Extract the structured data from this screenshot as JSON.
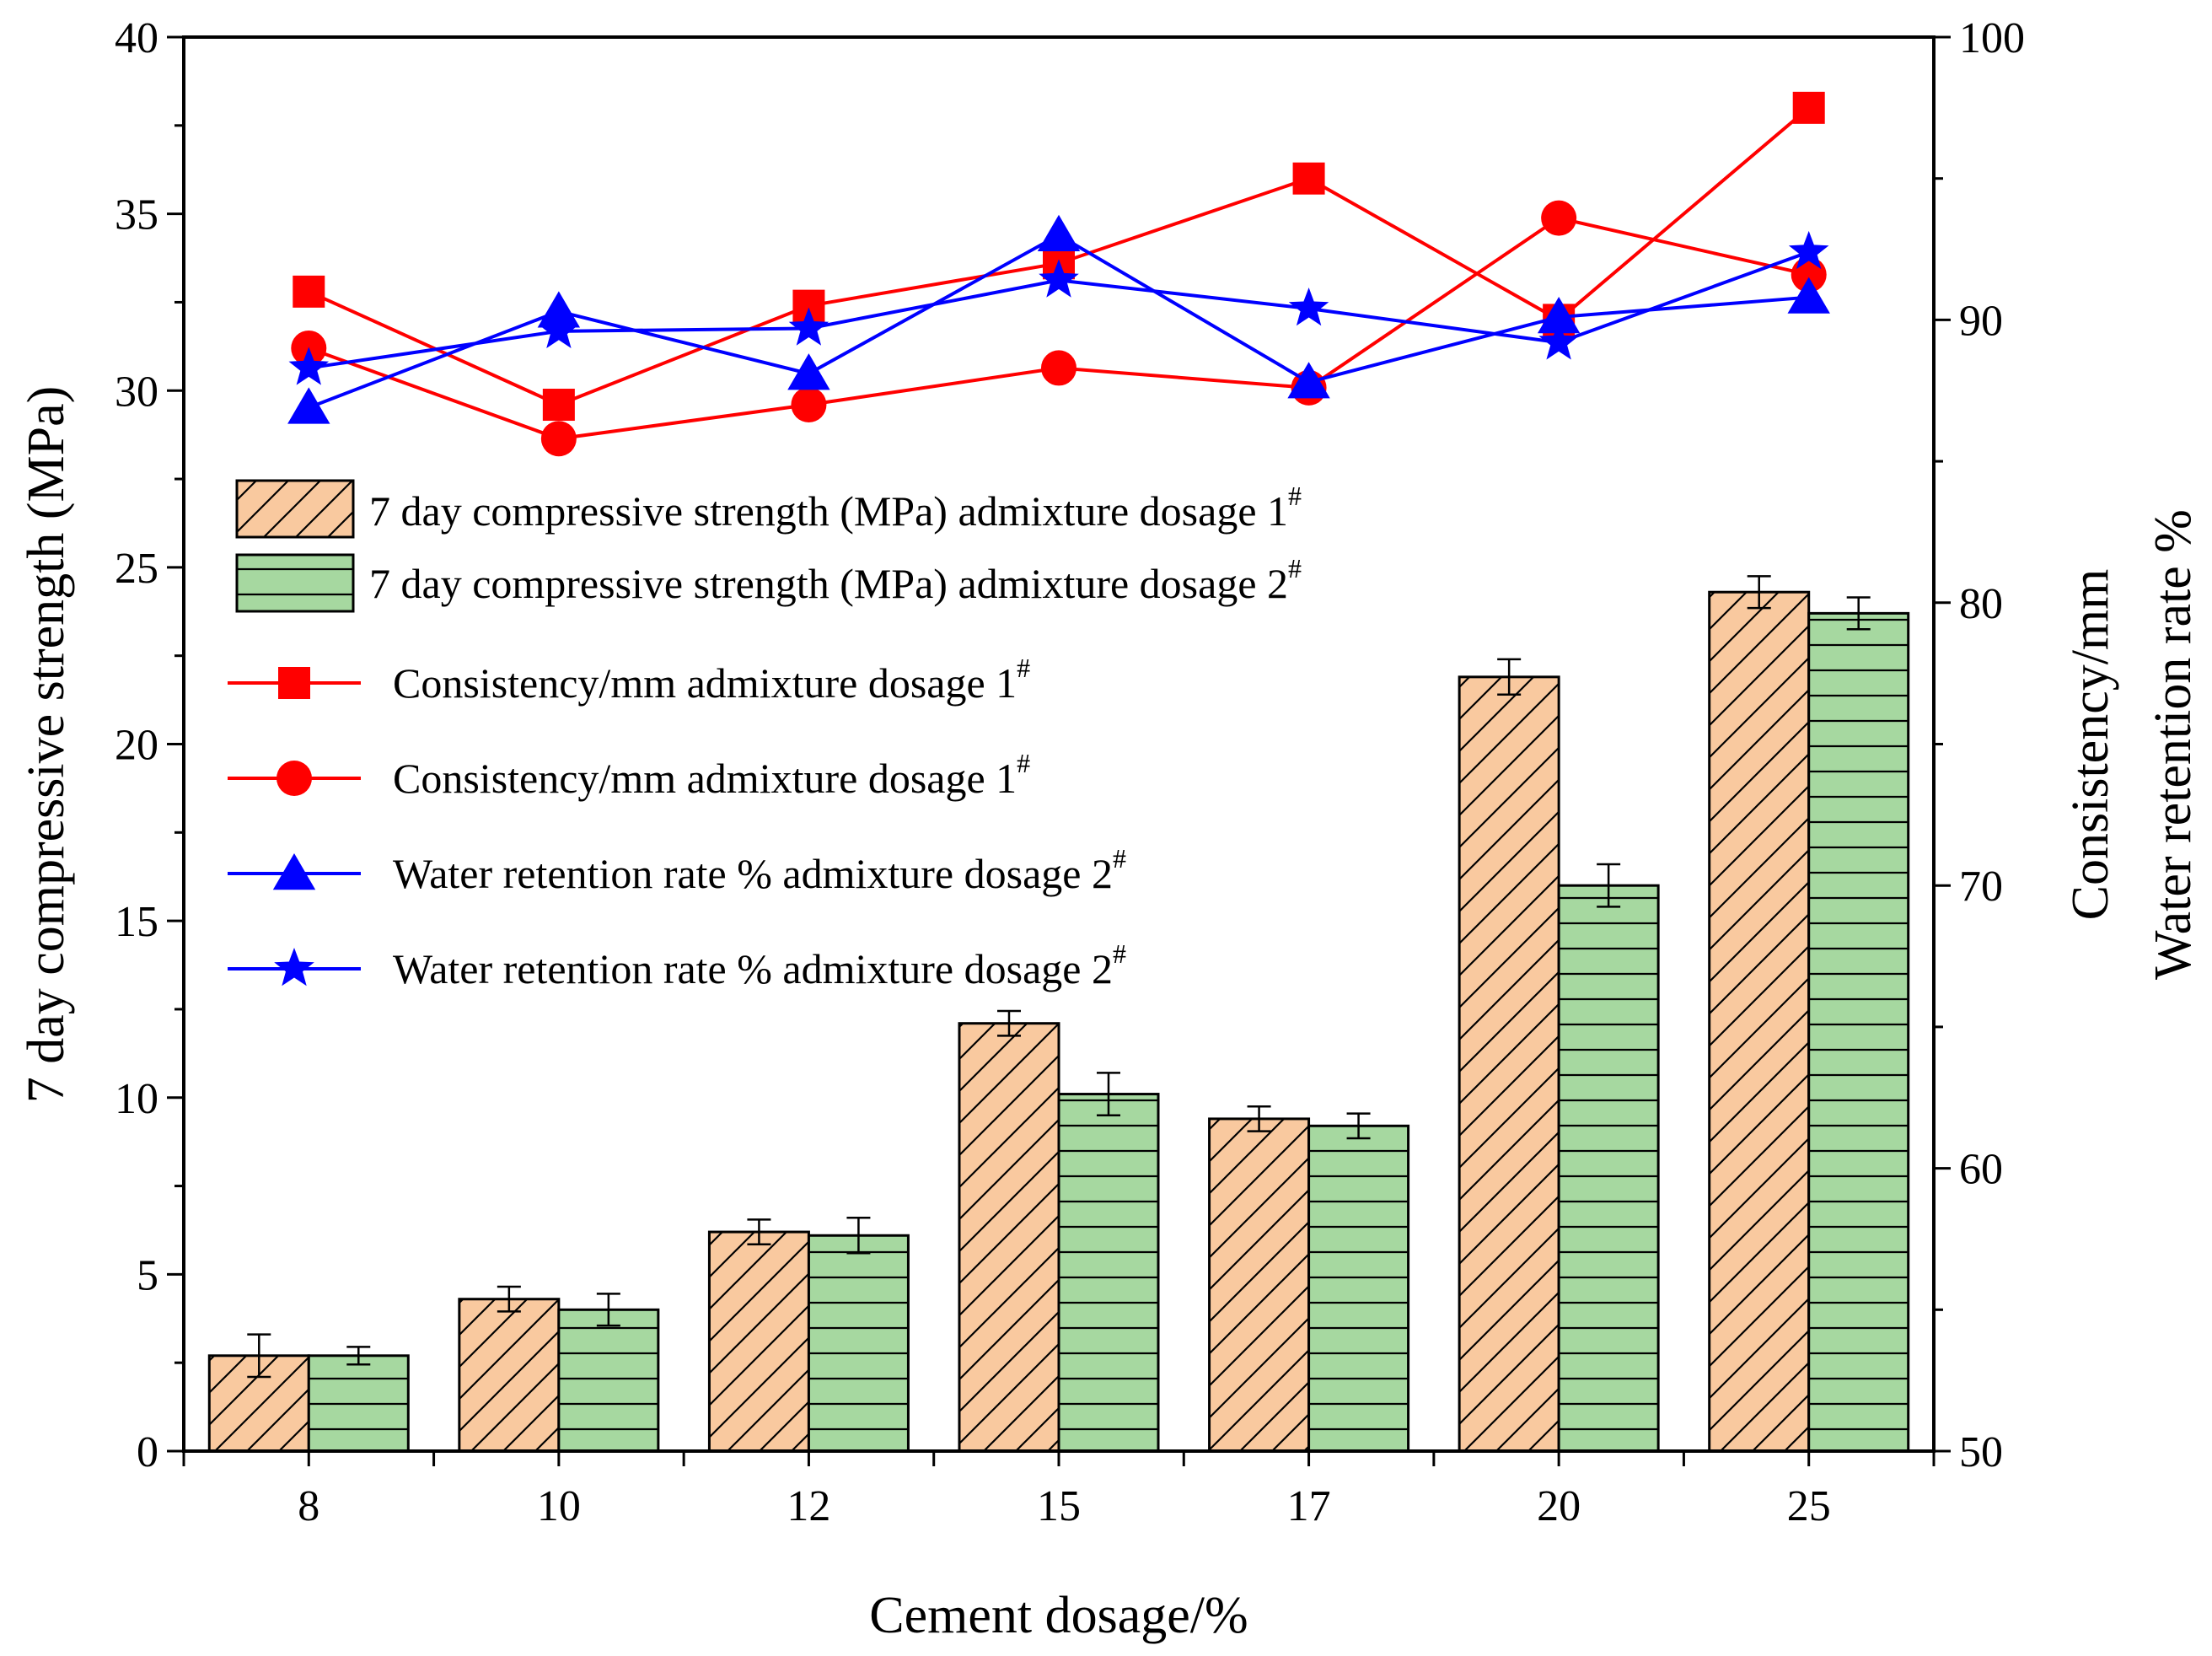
{
  "chart_data": {
    "type": "bar+line",
    "xlabel": "Cement dosage/%",
    "ylabel_left": "7 day compressive strength (MPa)",
    "ylabel_right_1": "Consistency/mm",
    "ylabel_right_2": "Water retention rate %",
    "categories": [
      "8",
      "10",
      "12",
      "15",
      "17",
      "20",
      "25"
    ],
    "y_left": {
      "lim": [
        0,
        40
      ],
      "ticks": [
        "0",
        "5",
        "10",
        "15",
        "20",
        "25",
        "30",
        "35",
        "40"
      ]
    },
    "y_right": {
      "lim": [
        50,
        100
      ],
      "ticks": [
        "50",
        "60",
        "70",
        "80",
        "90",
        "100"
      ]
    },
    "bar_series": [
      {
        "name": "7 day compressive strength (MPa) admixture dosage 1",
        "sup": "#",
        "pattern": "diagonal",
        "fill": "#f9c99f",
        "values": [
          2.7,
          4.3,
          6.2,
          12.1,
          9.4,
          21.9,
          24.3
        ],
        "errors": [
          0.6,
          0.35,
          0.35,
          0.35,
          0.35,
          0.5,
          0.45
        ]
      },
      {
        "name": "7 day compressive strength (MPa) admixture dosage 2",
        "sup": "#",
        "pattern": "horizontal",
        "fill": "#a6d8a0",
        "values": [
          2.7,
          4.0,
          6.1,
          10.1,
          9.2,
          16.0,
          23.7
        ],
        "errors": [
          0.25,
          0.45,
          0.5,
          0.6,
          0.35,
          0.6,
          0.45
        ]
      }
    ],
    "line_series": [
      {
        "name": "Consistency/mm admixture dosage 1",
        "sup": "#",
        "color": "#ff0000",
        "marker": "square",
        "values": [
          91.0,
          87.0,
          90.5,
          92.0,
          95.0,
          90.0,
          97.5
        ]
      },
      {
        "name": "Consistency/mm admixture dosage 1",
        "sup": "#",
        "color": "#ff0000",
        "marker": "circle",
        "values": [
          89.0,
          85.8,
          87.0,
          88.3,
          87.6,
          93.6,
          91.6
        ]
      },
      {
        "name": "Water retention rate % admixture dosage 2",
        "sup": "#",
        "color": "#0000ff",
        "marker": "triangle",
        "values": [
          86.9,
          90.3,
          88.1,
          93.0,
          87.8,
          90.1,
          90.8
        ]
      },
      {
        "name": "Water retention rate % admixture dosage 2",
        "sup": "#",
        "color": "#0000ff",
        "marker": "star",
        "values": [
          88.3,
          89.6,
          89.7,
          91.4,
          90.4,
          89.2,
          92.4
        ]
      }
    ]
  }
}
